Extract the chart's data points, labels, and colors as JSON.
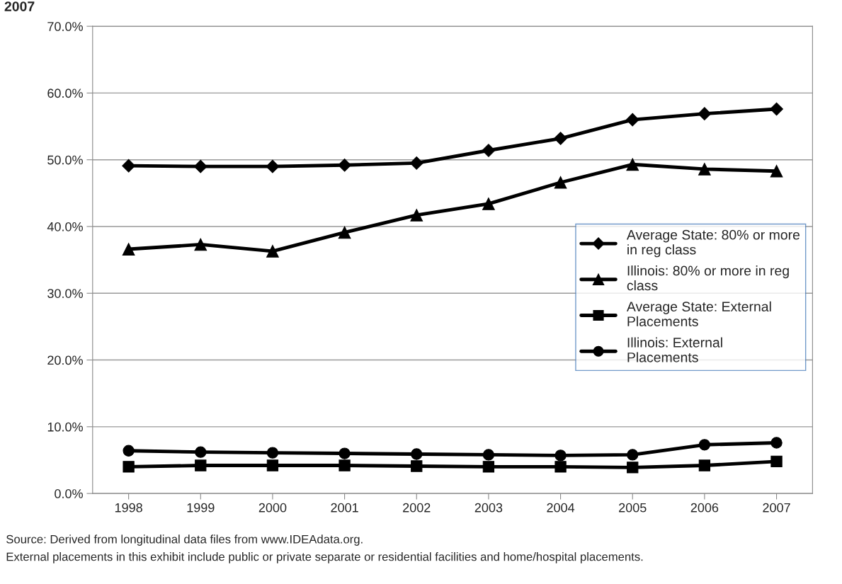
{
  "chart_data": {
    "type": "line",
    "title": "2007",
    "categories": [
      "1998",
      "1999",
      "2000",
      "2001",
      "2002",
      "2003",
      "2004",
      "2005",
      "2006",
      "2007"
    ],
    "series": [
      {
        "name": "Average State: 80% or more in reg class",
        "color": "#000000",
        "marker": "diamond",
        "values": [
          49.1,
          49.0,
          49.0,
          49.2,
          49.5,
          51.4,
          53.2,
          56.0,
          56.9,
          57.6
        ]
      },
      {
        "name": "Illinois: 80% or more in reg class",
        "color": "#000000",
        "marker": "triangle",
        "values": [
          36.6,
          37.3,
          36.3,
          39.1,
          41.7,
          43.4,
          46.6,
          49.3,
          48.6,
          48.3
        ]
      },
      {
        "name": "Average State: External Placements",
        "color": "#000000",
        "marker": "square",
        "values": [
          4.0,
          4.2,
          4.2,
          4.2,
          4.1,
          4.0,
          4.0,
          3.9,
          4.2,
          4.8
        ]
      },
      {
        "name": "Illinois: External Placements",
        "color": "#000000",
        "marker": "circle",
        "values": [
          6.4,
          6.2,
          6.1,
          6.0,
          5.9,
          5.8,
          5.7,
          5.8,
          7.3,
          7.6
        ]
      }
    ],
    "ylim": [
      0,
      70
    ],
    "yticks": [
      {
        "value": 0,
        "label": "0.0%"
      },
      {
        "value": 10,
        "label": "10.0%"
      },
      {
        "value": 20,
        "label": "20.0%"
      },
      {
        "value": 30,
        "label": "30.0%"
      },
      {
        "value": 40,
        "label": "40.0%"
      },
      {
        "value": 50,
        "label": "50.0%"
      },
      {
        "value": 60,
        "label": "60.0%"
      },
      {
        "value": 70,
        "label": "70.0%"
      }
    ],
    "grid": "y",
    "legend": "right",
    "line_style": "solid",
    "annotations": [
      "Source: Derived from longitudinal data files from www.IDEAdata.org.",
      "External placements in this exhibit include public or private separate or residential facilities and home/hospital placements."
    ]
  }
}
